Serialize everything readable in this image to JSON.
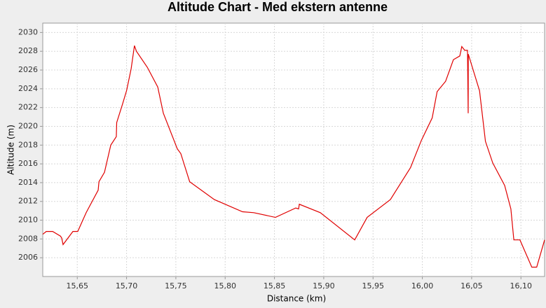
{
  "chart_data": {
    "type": "line",
    "title": "Altitude Chart - Med ekstern antenne",
    "x_label": "Distance (km)",
    "y_label": "Altitude (m)",
    "color": "#e00000",
    "grid": true,
    "xlim": [
      15.615,
      16.124
    ],
    "ylim": [
      2004,
      2031
    ],
    "xticks": [
      {
        "value": 15.65,
        "label": "15,65"
      },
      {
        "value": 15.7,
        "label": "15,70"
      },
      {
        "value": 15.75,
        "label": "15,75"
      },
      {
        "value": 15.8,
        "label": "15,80"
      },
      {
        "value": 15.85,
        "label": "15,85"
      },
      {
        "value": 15.9,
        "label": "15,90"
      },
      {
        "value": 15.95,
        "label": "15,95"
      },
      {
        "value": 16.0,
        "label": "16,00"
      },
      {
        "value": 16.05,
        "label": "16,05"
      },
      {
        "value": 16.1,
        "label": "16,10"
      }
    ],
    "yticks": [
      2006,
      2008,
      2010,
      2012,
      2014,
      2016,
      2018,
      2020,
      2022,
      2024,
      2026,
      2028,
      2030
    ],
    "x": [
      15.615,
      15.6186,
      15.625,
      15.633,
      15.6342,
      15.6356,
      15.6456,
      15.6505,
      15.659,
      15.6712,
      15.672,
      15.6776,
      15.684,
      15.6896,
      15.69,
      15.696,
      15.7,
      15.7046,
      15.708,
      15.71,
      15.721,
      15.7316,
      15.7373,
      15.7515,
      15.755,
      15.764,
      15.789,
      15.8176,
      15.829,
      15.851,
      15.8716,
      15.8745,
      15.8752,
      15.8965,
      15.9314,
      15.944,
      15.9676,
      15.988,
      15.999,
      16.01,
      16.015,
      16.0236,
      16.0315,
      16.038,
      16.04,
      16.043,
      16.0458,
      16.0465,
      16.0466,
      16.058,
      16.064,
      16.0714,
      16.0835,
      16.0898,
      16.0928,
      16.099,
      16.111,
      16.116,
      16.124
    ],
    "values": [
      2008.5,
      2008.8,
      2008.8,
      2008.3,
      2008.1,
      2007.4,
      2008.8,
      2008.8,
      2010.8,
      2013.2,
      2014.1,
      2015.1,
      2018.0,
      2018.9,
      2020.4,
      2022.4,
      2023.8,
      2026.1,
      2028.6,
      2028.0,
      2026.3,
      2024.2,
      2021.4,
      2017.6,
      2017.1,
      2014.1,
      2012.2,
      2010.9,
      2010.8,
      2010.3,
      2011.3,
      2011.2,
      2011.7,
      2010.8,
      2007.9,
      2010.3,
      2012.2,
      2015.6,
      2018.5,
      2020.9,
      2023.7,
      2024.8,
      2027.1,
      2027.5,
      2028.5,
      2028.1,
      2028.1,
      2021.4,
      2027.7,
      2023.8,
      2018.4,
      2016.1,
      2013.7,
      2011.2,
      2007.9,
      2007.9,
      2005.0,
      2005.0,
      2007.9
    ]
  }
}
